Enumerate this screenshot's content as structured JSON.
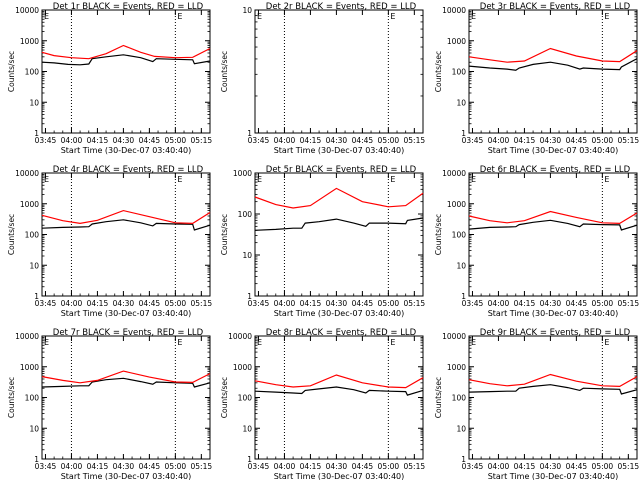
{
  "style": {
    "black_series_color": "#000000",
    "red_series_color": "#ff0000",
    "background": "#ffffff"
  },
  "shared": {
    "ylabel": "Counts/sec",
    "xlabel": "Start Time (30-Dec-07 03:40:40)",
    "x_tick_labels": [
      "03:45",
      "04:00",
      "04:15",
      "04:30",
      "04:45",
      "05:00",
      "05:15"
    ],
    "flag_glyphs": [
      "E",
      "E"
    ]
  },
  "chart_data": [
    {
      "type": "line",
      "title": "Det 1r BLACK = Events, RED = LLD",
      "y_scale": "log",
      "ylim": [
        1,
        10000
      ],
      "yticks": [
        "1",
        "10",
        "100",
        "1000",
        "10000"
      ],
      "xlim": [
        "03:43",
        "05:20"
      ],
      "x_tick_values": [
        "03:45",
        "04:00",
        "04:15",
        "04:30",
        "04:45",
        "05:00",
        "05:15"
      ],
      "vertical_markers": [
        "04:00",
        "05:00"
      ],
      "series": [
        {
          "name": "Events",
          "color": "black",
          "x": [
            "03:43",
            "03:50",
            "03:58",
            "04:05",
            "04:10",
            "04:12",
            "04:20",
            "04:30",
            "04:40",
            "04:47",
            "04:49",
            "05:00",
            "05:10",
            "05:11",
            "05:20"
          ],
          "values": [
            200,
            190,
            170,
            165,
            175,
            260,
            300,
            350,
            280,
            210,
            260,
            250,
            240,
            180,
            220
          ]
        },
        {
          "name": "LLD",
          "color": "red",
          "x": [
            "03:43",
            "03:50",
            "04:00",
            "04:10",
            "04:20",
            "04:30",
            "04:40",
            "04:48",
            "05:00",
            "05:10",
            "05:20"
          ],
          "values": [
            420,
            330,
            280,
            260,
            380,
            700,
            420,
            310,
            280,
            290,
            560
          ]
        }
      ]
    },
    {
      "type": "line",
      "title": "Det 2r BLACK = Events, RED = LLD",
      "y_scale": "log",
      "ylim": [
        1,
        10
      ],
      "yticks": [
        "1",
        "10"
      ],
      "xlim": [
        "03:43",
        "05:20"
      ],
      "x_tick_values": [
        "03:45",
        "04:00",
        "04:15",
        "04:30",
        "04:45",
        "05:00",
        "05:15"
      ],
      "vertical_markers": [
        "04:00",
        "05:00"
      ],
      "series": []
    },
    {
      "type": "line",
      "title": "Det 3r BLACK = Events, RED = LLD",
      "y_scale": "log",
      "ylim": [
        1,
        10000
      ],
      "yticks": [
        "1",
        "10",
        "100",
        "1000",
        "10000"
      ],
      "xlim": [
        "03:43",
        "05:20"
      ],
      "x_tick_values": [
        "03:45",
        "04:00",
        "04:15",
        "04:30",
        "04:45",
        "05:00",
        "05:15"
      ],
      "vertical_markers": [
        "05:00"
      ],
      "series": [
        {
          "name": "Events",
          "color": "black",
          "x": [
            "03:43",
            "03:55",
            "04:05",
            "04:10",
            "04:12",
            "04:20",
            "04:30",
            "04:40",
            "04:47",
            "04:49",
            "05:00",
            "05:10",
            "05:11",
            "05:20"
          ],
          "values": [
            150,
            130,
            120,
            110,
            130,
            170,
            200,
            160,
            120,
            130,
            120,
            115,
            140,
            260
          ]
        },
        {
          "name": "LLD",
          "color": "red",
          "x": [
            "03:43",
            "03:55",
            "04:05",
            "04:15",
            "04:30",
            "04:45",
            "05:00",
            "05:10",
            "05:20"
          ],
          "values": [
            300,
            240,
            200,
            220,
            560,
            320,
            220,
            210,
            480
          ]
        }
      ]
    },
    {
      "type": "line",
      "title": "Det 4r BLACK = Events, RED = LLD",
      "y_scale": "log",
      "ylim": [
        1,
        10000
      ],
      "yticks": [
        "1",
        "10",
        "100",
        "1000",
        "10000"
      ],
      "xlim": [
        "03:43",
        "05:20"
      ],
      "x_tick_values": [
        "03:45",
        "04:00",
        "04:15",
        "04:30",
        "04:45",
        "05:00",
        "05:15"
      ],
      "vertical_markers": [
        "04:00",
        "05:00"
      ],
      "series": [
        {
          "name": "Events",
          "color": "black",
          "x": [
            "03:43",
            "03:55",
            "04:05",
            "04:10",
            "04:12",
            "04:20",
            "04:30",
            "04:40",
            "04:47",
            "04:49",
            "05:00",
            "05:10",
            "05:11",
            "05:20"
          ],
          "values": [
            160,
            170,
            175,
            180,
            220,
            260,
            300,
            240,
            190,
            230,
            220,
            215,
            140,
            200
          ]
        },
        {
          "name": "LLD",
          "color": "red",
          "x": [
            "03:43",
            "03:55",
            "04:05",
            "04:15",
            "04:30",
            "04:45",
            "05:00",
            "05:10",
            "05:20"
          ],
          "values": [
            420,
            280,
            230,
            290,
            600,
            380,
            240,
            230,
            520
          ]
        }
      ]
    },
    {
      "type": "line",
      "title": "Det 5r BLACK = Events, RED = LLD",
      "y_scale": "log",
      "ylim": [
        1,
        1000
      ],
      "yticks": [
        "1",
        "10",
        "100",
        "1000"
      ],
      "xlim": [
        "03:43",
        "05:20"
      ],
      "x_tick_values": [
        "03:45",
        "04:00",
        "04:15",
        "04:30",
        "04:45",
        "05:00",
        "05:15"
      ],
      "vertical_markers": [
        "04:00",
        "05:00"
      ],
      "series": [
        {
          "name": "Events",
          "color": "black",
          "x": [
            "03:43",
            "03:55",
            "04:05",
            "04:10",
            "04:12",
            "04:20",
            "04:30",
            "04:40",
            "04:47",
            "04:49",
            "05:00",
            "05:10",
            "05:11",
            "05:20"
          ],
          "values": [
            40,
            42,
            45,
            45,
            60,
            65,
            75,
            60,
            50,
            60,
            60,
            58,
            70,
            80
          ]
        },
        {
          "name": "LLD",
          "color": "red",
          "x": [
            "03:43",
            "03:55",
            "04:05",
            "04:15",
            "04:30",
            "04:45",
            "05:00",
            "05:10",
            "05:20"
          ],
          "values": [
            260,
            170,
            140,
            160,
            420,
            200,
            150,
            160,
            320
          ]
        }
      ]
    },
    {
      "type": "line",
      "title": "Det 6r BLACK = Events, RED = LLD",
      "y_scale": "log",
      "ylim": [
        1,
        10000
      ],
      "yticks": [
        "1",
        "10",
        "100",
        "1000",
        "10000"
      ],
      "xlim": [
        "03:43",
        "05:20"
      ],
      "x_tick_values": [
        "03:45",
        "04:00",
        "04:15",
        "04:30",
        "04:45",
        "05:00",
        "05:15"
      ],
      "vertical_markers": [
        "05:00"
      ],
      "series": [
        {
          "name": "Events",
          "color": "black",
          "x": [
            "03:43",
            "03:55",
            "04:05",
            "04:10",
            "04:12",
            "04:20",
            "04:30",
            "04:40",
            "04:47",
            "04:49",
            "05:00",
            "05:10",
            "05:11",
            "05:20"
          ],
          "values": [
            150,
            170,
            175,
            180,
            210,
            250,
            290,
            230,
            180,
            220,
            210,
            205,
            140,
            200
          ]
        },
        {
          "name": "LLD",
          "color": "red",
          "x": [
            "03:43",
            "03:55",
            "04:05",
            "04:15",
            "04:30",
            "04:45",
            "05:00",
            "05:10",
            "05:20"
          ],
          "values": [
            400,
            280,
            240,
            280,
            560,
            360,
            240,
            230,
            500
          ]
        }
      ]
    },
    {
      "type": "line",
      "title": "Det 7r BLACK = Events, RED = LLD",
      "y_scale": "log",
      "ylim": [
        1,
        10000
      ],
      "yticks": [
        "1",
        "10",
        "100",
        "1000",
        "10000"
      ],
      "xlim": [
        "03:43",
        "05:20"
      ],
      "x_tick_values": [
        "03:45",
        "04:00",
        "04:15",
        "04:30",
        "04:45",
        "05:00",
        "05:15"
      ],
      "vertical_markers": [
        "04:00",
        "05:00"
      ],
      "series": [
        {
          "name": "Events",
          "color": "black",
          "x": [
            "03:43",
            "03:55",
            "04:05",
            "04:10",
            "04:12",
            "04:20",
            "04:30",
            "04:40",
            "04:47",
            "04:49",
            "05:00",
            "05:10",
            "05:11",
            "05:20"
          ],
          "values": [
            220,
            230,
            240,
            240,
            320,
            380,
            420,
            330,
            270,
            320,
            300,
            290,
            220,
            300
          ]
        },
        {
          "name": "LLD",
          "color": "red",
          "x": [
            "03:43",
            "03:55",
            "04:05",
            "04:15",
            "04:30",
            "04:45",
            "05:00",
            "05:10",
            "05:20"
          ],
          "values": [
            480,
            360,
            300,
            360,
            720,
            460,
            320,
            310,
            600
          ]
        }
      ]
    },
    {
      "type": "line",
      "title": "Det 8r BLACK = Events, RED = LLD",
      "y_scale": "log",
      "ylim": [
        1,
        10000
      ],
      "yticks": [
        "1",
        "10",
        "100",
        "1000",
        "10000"
      ],
      "xlim": [
        "03:43",
        "05:20"
      ],
      "x_tick_values": [
        "03:45",
        "04:00",
        "04:15",
        "04:30",
        "04:45",
        "05:00",
        "05:15"
      ],
      "vertical_markers": [
        "04:00",
        "05:00"
      ],
      "series": [
        {
          "name": "Events",
          "color": "black",
          "x": [
            "03:43",
            "03:55",
            "04:05",
            "04:10",
            "04:12",
            "04:20",
            "04:30",
            "04:40",
            "04:47",
            "04:49",
            "05:00",
            "05:10",
            "05:11",
            "05:20"
          ],
          "values": [
            160,
            150,
            140,
            135,
            170,
            190,
            220,
            180,
            140,
            170,
            160,
            155,
            120,
            170
          ]
        },
        {
          "name": "LLD",
          "color": "red",
          "x": [
            "03:43",
            "03:55",
            "04:05",
            "04:15",
            "04:30",
            "04:45",
            "05:00",
            "05:10",
            "05:20"
          ],
          "values": [
            350,
            260,
            220,
            240,
            540,
            300,
            220,
            210,
            440
          ]
        }
      ]
    },
    {
      "type": "line",
      "title": "Det 9r BLACK = Events, RED = LLD",
      "y_scale": "log",
      "ylim": [
        1,
        10000
      ],
      "yticks": [
        "1",
        "10",
        "100",
        "1000",
        "10000"
      ],
      "xlim": [
        "03:43",
        "05:20"
      ],
      "x_tick_values": [
        "03:45",
        "04:00",
        "04:15",
        "04:30",
        "04:45",
        "05:00",
        "05:15"
      ],
      "vertical_markers": [
        "05:00"
      ],
      "series": [
        {
          "name": "Events",
          "color": "black",
          "x": [
            "03:43",
            "03:55",
            "04:05",
            "04:10",
            "04:12",
            "04:20",
            "04:30",
            "04:40",
            "04:47",
            "04:49",
            "05:00",
            "05:10",
            "05:11",
            "05:20"
          ],
          "values": [
            150,
            155,
            160,
            160,
            200,
            230,
            260,
            210,
            170,
            200,
            190,
            185,
            130,
            180
          ]
        },
        {
          "name": "LLD",
          "color": "red",
          "x": [
            "03:43",
            "03:55",
            "04:05",
            "04:15",
            "04:30",
            "04:45",
            "05:00",
            "05:10",
            "05:20"
          ],
          "values": [
            380,
            280,
            240,
            270,
            560,
            340,
            240,
            230,
            480
          ]
        }
      ]
    }
  ]
}
